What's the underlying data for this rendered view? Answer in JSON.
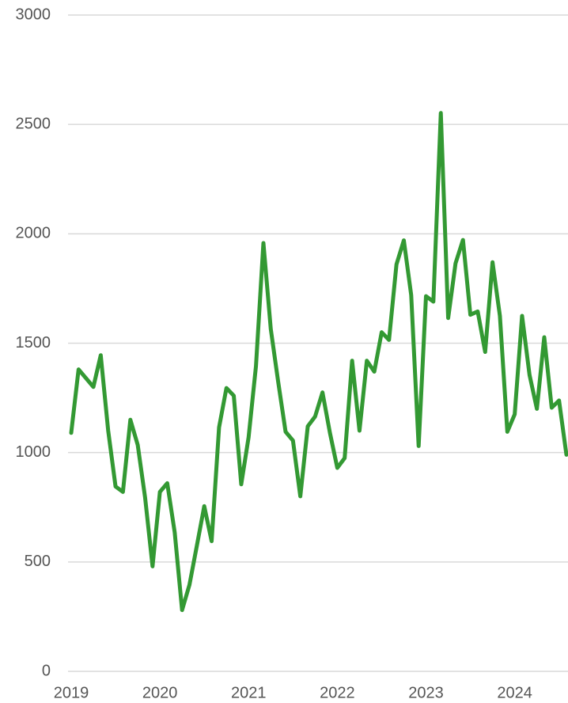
{
  "chart_data": {
    "type": "line",
    "x": [
      2019,
      2019.083,
      2019.167,
      2019.25,
      2019.333,
      2019.417,
      2019.5,
      2019.583,
      2019.667,
      2019.75,
      2019.833,
      2019.917,
      2020,
      2020.083,
      2020.167,
      2020.25,
      2020.333,
      2020.417,
      2020.5,
      2020.583,
      2020.667,
      2020.75,
      2020.833,
      2020.917,
      2021,
      2021.083,
      2021.167,
      2021.25,
      2021.333,
      2021.417,
      2021.5,
      2021.583,
      2021.667,
      2021.75,
      2021.833,
      2021.917,
      2022,
      2022.083,
      2022.167,
      2022.25,
      2022.333,
      2022.417,
      2022.5,
      2022.583,
      2022.667,
      2022.75,
      2022.833,
      2022.917,
      2023,
      2023.083,
      2023.167,
      2023.25,
      2023.333,
      2023.417,
      2023.5,
      2023.583,
      2023.667,
      2023.75,
      2023.833,
      2023.917,
      2024,
      2024.083,
      2024.167,
      2024.25,
      2024.333,
      2024.417,
      2024.5,
      2024.583
    ],
    "series": [
      {
        "color": "#339933",
        "values": [
          1090,
          1380,
          1340,
          1300,
          1445,
          1100,
          845,
          820,
          1150,
          1035,
          795,
          480,
          820,
          860,
          635,
          280,
          395,
          575,
          755,
          595,
          1115,
          1295,
          1260,
          855,
          1070,
          1395,
          1958,
          1565,
          1325,
          1095,
          1055,
          800,
          1120,
          1165,
          1275,
          1090,
          930,
          975,
          1420,
          1100,
          1420,
          1370,
          1550,
          1515,
          1860,
          1970,
          1720,
          1030,
          1715,
          1690,
          2552,
          1615,
          1865,
          1972,
          1630,
          1645,
          1460,
          1870,
          1625,
          1095,
          1175,
          1625,
          1355,
          1200,
          1527,
          1205,
          1238,
          990
        ]
      }
    ],
    "xlim": [
      2019,
      2024.583
    ],
    "xticks": [
      2019,
      2020,
      2021,
      2022,
      2023,
      2024
    ],
    "ylim": [
      0,
      3000
    ],
    "yticks": [
      0,
      500,
      1000,
      1500,
      2000,
      2500,
      3000
    ],
    "grid": true
  }
}
